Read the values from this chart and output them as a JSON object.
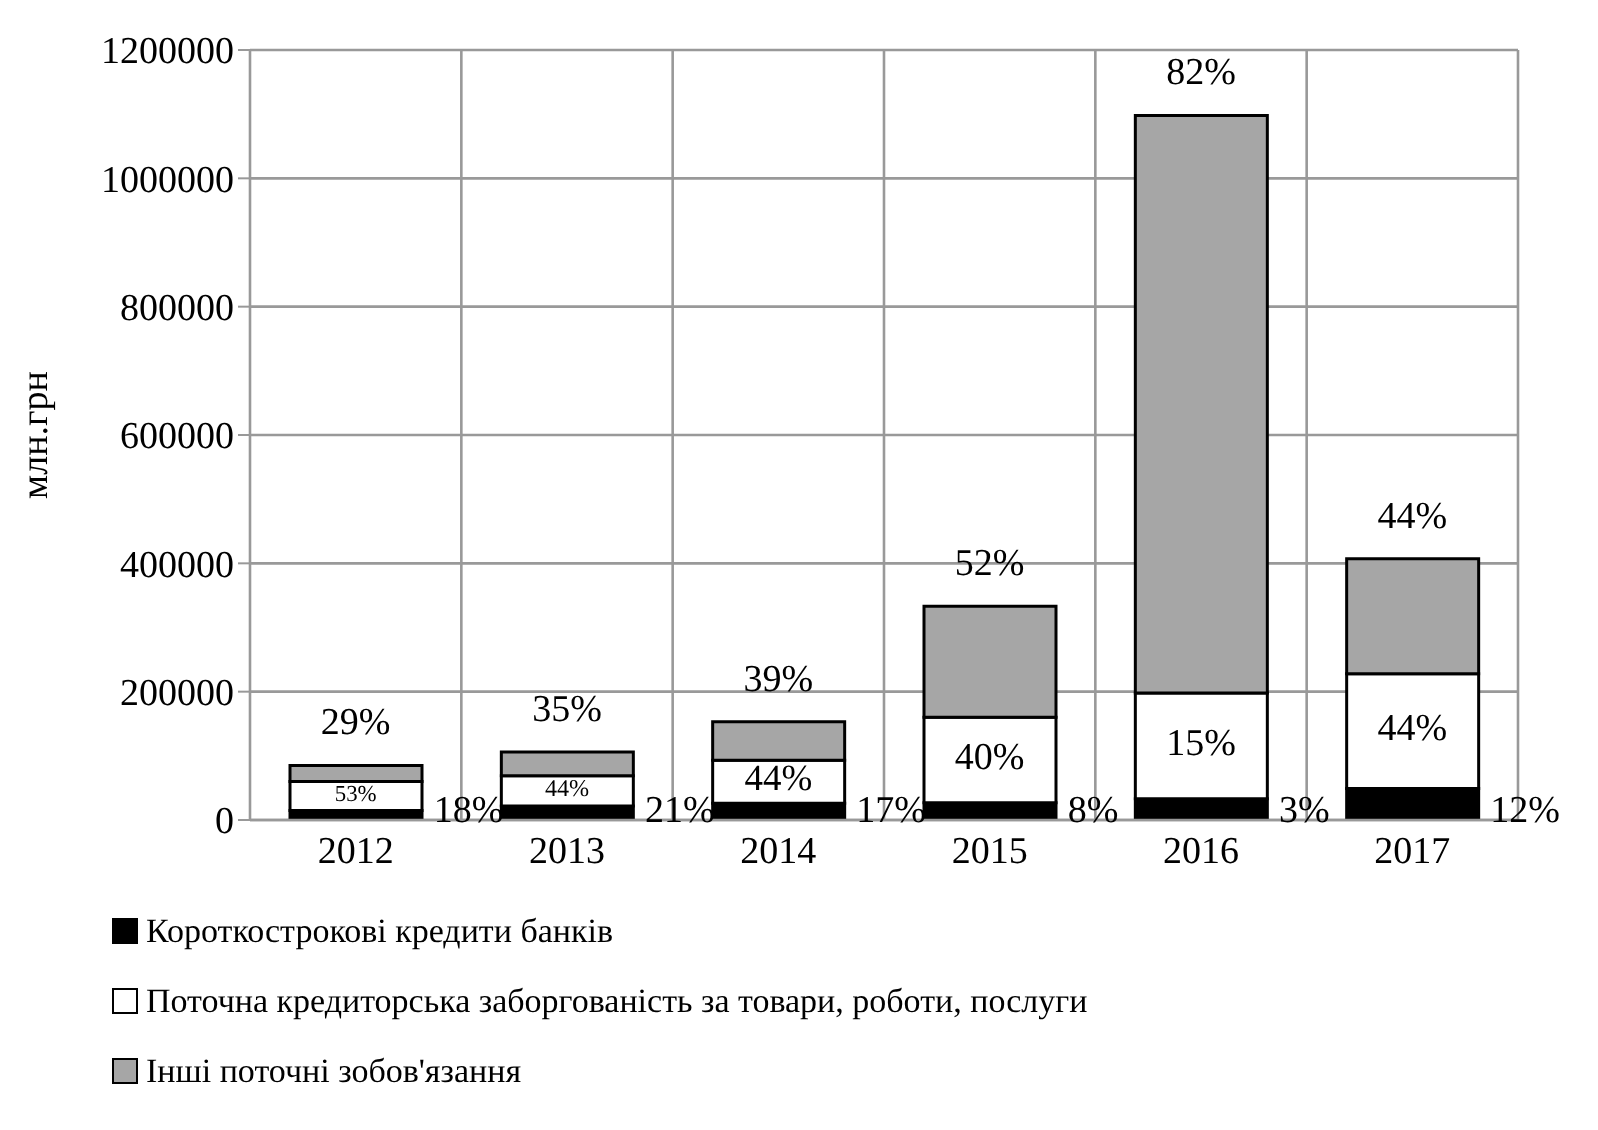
{
  "chart_data": {
    "type": "bar",
    "stacked": true,
    "ylabel": "млн.грн",
    "categories": [
      "2012",
      "2013",
      "2014",
      "2015",
      "2016",
      "2017"
    ],
    "series": [
      {
        "name": "Короткострокові кредити банків",
        "color": "#000000",
        "values": [
          15000,
          22000,
          26000,
          27000,
          33000,
          49000
        ]
      },
      {
        "name": "Поточна кредиторська заборгованість за товари, роботи, послуги",
        "color": "#ffffff",
        "values": [
          45000,
          47000,
          67000,
          133000,
          165000,
          179000
        ]
      },
      {
        "name": "Інші поточні зобов'язання",
        "color": "#a6a6a6",
        "values": [
          25000,
          37000,
          60000,
          173000,
          900000,
          179000
        ]
      }
    ],
    "annotations": [
      {
        "text": "18%",
        "x": "2012",
        "y": 10000
      },
      {
        "text": "21%",
        "x": "2013",
        "y": 10000
      },
      {
        "text": "17%",
        "x": "2014",
        "y": 10000
      },
      {
        "text": "8%",
        "x": "2015",
        "y": 10000
      },
      {
        "text": "3%",
        "x": "2016",
        "y": 10000
      },
      {
        "text": "12%",
        "x": "2017",
        "y": 10000
      },
      {
        "text": "53%",
        "x": "2012",
        "y": 60000
      },
      {
        "text": "44%",
        "x": "2013",
        "y": 69000
      },
      {
        "text": "44%",
        "x": "2014",
        "y": 93000
      },
      {
        "text": "40%",
        "x": "2015",
        "y": 160000
      },
      {
        "text": "15%",
        "x": "2016",
        "y": 198000
      },
      {
        "text": "44%",
        "x": "2017",
        "y": 228000
      },
      {
        "text": "29%",
        "x": "2012",
        "y": 85000
      },
      {
        "text": "35%",
        "x": "2013",
        "y": 106000
      },
      {
        "text": "39%",
        "x": "2014",
        "y": 153000
      },
      {
        "text": "52%",
        "x": "2015",
        "y": 333000
      },
      {
        "text": "82%",
        "x": "2016",
        "y": 1098000
      },
      {
        "text": "44%",
        "x": "2017",
        "y": 407000
      }
    ],
    "ylim": [
      0,
      1200000
    ],
    "yticks": [
      0,
      200000,
      400000,
      600000,
      800000,
      1000000,
      1200000
    ],
    "grid": true,
    "legend": "bottom"
  }
}
